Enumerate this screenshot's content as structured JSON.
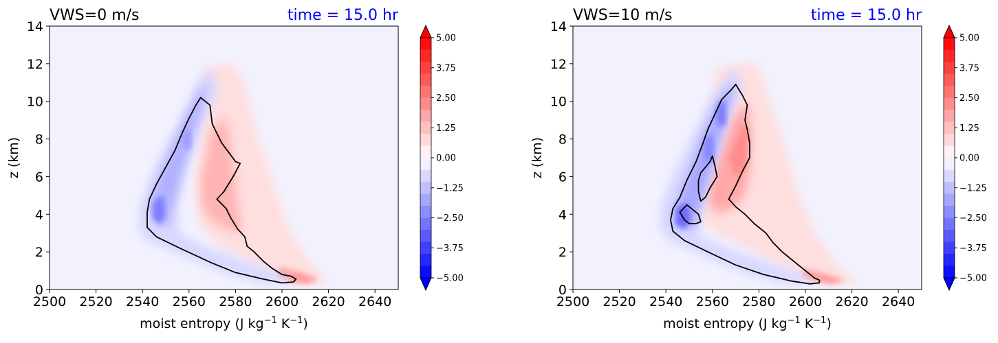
{
  "figure_background": "#ffffff",
  "colors": {
    "plot_background": "#f2f2ff",
    "title_left": "#000000",
    "title_right": "#0000ff",
    "positive_anomaly": "#ff0000",
    "negative_anomaly": "#0000ff",
    "contour_line": "#000000"
  },
  "chart_data": [
    {
      "type": "heatmap",
      "title": "VWS=0 m/s",
      "time_label": "time = 15.0 hr",
      "xlabel": "moist entropy (J kg⁻¹ K⁻¹)",
      "ylabel": "z (km)",
      "xlim": [
        2500,
        2650
      ],
      "ylim": [
        0,
        14
      ],
      "xticks": [
        "2500",
        "2520",
        "2540",
        "2560",
        "2580",
        "2600",
        "2620",
        "2640"
      ],
      "yticks": [
        "0",
        "2",
        "4",
        "6",
        "8",
        "10",
        "12",
        "14"
      ],
      "colorbar": {
        "min": -5.0,
        "max": 5.0,
        "extend": "both",
        "ticks": [
          "5.00",
          "3.75",
          "2.50",
          "1.25",
          "0.00",
          "−1.25",
          "−2.50",
          "−3.75",
          "−5.00"
        ]
      },
      "negative_core": {
        "label": "blue lobe",
        "approx_min": -3.0
      },
      "positive_core": {
        "label": "red lobe",
        "approx_max": 1.8
      },
      "contour": [
        [
          2565,
          10.2
        ],
        [
          2569,
          9.8
        ],
        [
          2570,
          8.8
        ],
        [
          2574,
          7.8
        ],
        [
          2577,
          7.3
        ],
        [
          2580,
          6.8
        ],
        [
          2582,
          6.7
        ],
        [
          2579,
          6.0
        ],
        [
          2575,
          5.2
        ],
        [
          2572,
          4.8
        ],
        [
          2576,
          4.3
        ],
        [
          2578,
          3.8
        ],
        [
          2581,
          3.2
        ],
        [
          2584,
          2.8
        ],
        [
          2585,
          2.3
        ],
        [
          2588,
          2.0
        ],
        [
          2592,
          1.5
        ],
        [
          2596,
          1.1
        ],
        [
          2600,
          0.8
        ],
        [
          2604,
          0.7
        ],
        [
          2606,
          0.55
        ],
        [
          2605,
          0.4
        ],
        [
          2600,
          0.35
        ],
        [
          2592,
          0.55
        ],
        [
          2580,
          0.9
        ],
        [
          2570,
          1.4
        ],
        [
          2556,
          2.2
        ],
        [
          2546,
          2.8
        ],
        [
          2542,
          3.3
        ],
        [
          2542,
          4.1
        ],
        [
          2543,
          4.8
        ],
        [
          2546,
          5.6
        ],
        [
          2550,
          6.5
        ],
        [
          2554,
          7.4
        ],
        [
          2557,
          8.3
        ],
        [
          2560,
          9.1
        ],
        [
          2563,
          9.8
        ],
        [
          2565,
          10.2
        ]
      ]
    },
    {
      "type": "heatmap",
      "title": "VWS=10 m/s",
      "time_label": "time = 15.0 hr",
      "xlabel": "moist entropy (J kg⁻¹ K⁻¹)",
      "ylabel": "z (km)",
      "xlim": [
        2500,
        2650
      ],
      "ylim": [
        0,
        14
      ],
      "xticks": [
        "2500",
        "2520",
        "2540",
        "2560",
        "2580",
        "2600",
        "2620",
        "2640"
      ],
      "yticks": [
        "0",
        "2",
        "4",
        "6",
        "8",
        "10",
        "12",
        "14"
      ],
      "colorbar": {
        "min": -5.0,
        "max": 5.0,
        "extend": "both",
        "ticks": [
          "5.00",
          "3.75",
          "2.50",
          "1.25",
          "0.00",
          "−1.25",
          "−2.50",
          "−3.75",
          "−5.00"
        ]
      },
      "negative_core": {
        "label": "blue lobe",
        "approx_min": -3.8
      },
      "positive_core": {
        "label": "red lobe",
        "approx_max": 2.5
      },
      "contour": [
        [
          2570,
          10.9
        ],
        [
          2573,
          10.3
        ],
        [
          2575,
          9.8
        ],
        [
          2574,
          9.0
        ],
        [
          2575,
          8.5
        ],
        [
          2576,
          7.8
        ],
        [
          2576,
          7.0
        ],
        [
          2573,
          6.3
        ],
        [
          2570,
          5.5
        ],
        [
          2567,
          4.8
        ],
        [
          2570,
          4.4
        ],
        [
          2574,
          4.0
        ],
        [
          2578,
          3.5
        ],
        [
          2583,
          3.0
        ],
        [
          2586,
          2.5
        ],
        [
          2590,
          2.0
        ],
        [
          2595,
          1.5
        ],
        [
          2600,
          1.0
        ],
        [
          2604,
          0.6
        ],
        [
          2606,
          0.5
        ],
        [
          2606,
          0.35
        ],
        [
          2602,
          0.3
        ],
        [
          2594,
          0.45
        ],
        [
          2582,
          0.8
        ],
        [
          2570,
          1.3
        ],
        [
          2558,
          2.0
        ],
        [
          2548,
          2.6
        ],
        [
          2543,
          3.1
        ],
        [
          2542,
          3.7
        ],
        [
          2543,
          4.3
        ],
        [
          2546,
          4.9
        ],
        [
          2549,
          5.8
        ],
        [
          2553,
          6.8
        ],
        [
          2556,
          7.8
        ],
        [
          2558,
          8.5
        ],
        [
          2561,
          9.3
        ],
        [
          2564,
          10.1
        ],
        [
          2568,
          10.6
        ],
        [
          2570,
          10.9
        ]
      ],
      "contour_inner": [
        [
          [
            2560,
            7.1
          ],
          [
            2561,
            6.6
          ],
          [
            2562,
            6.0
          ],
          [
            2559,
            5.4
          ],
          [
            2557,
            4.9
          ],
          [
            2555,
            4.7
          ],
          [
            2554,
            5.2
          ],
          [
            2554,
            5.8
          ],
          [
            2555,
            6.2
          ],
          [
            2557,
            6.5
          ],
          [
            2559,
            6.8
          ],
          [
            2560,
            7.1
          ]
        ],
        [
          [
            2549,
            4.5
          ],
          [
            2554,
            4.0
          ],
          [
            2555,
            3.6
          ],
          [
            2553,
            3.5
          ],
          [
            2550,
            3.5
          ],
          [
            2548,
            3.7
          ],
          [
            2546,
            4.1
          ],
          [
            2549,
            4.5
          ]
        ]
      ]
    }
  ]
}
